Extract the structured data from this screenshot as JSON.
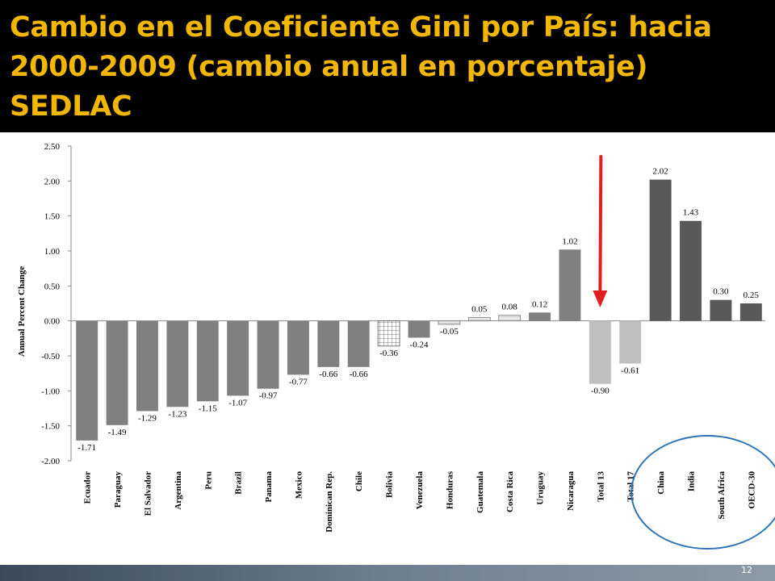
{
  "slide": {
    "title": "Cambio en el Coeficiente Gini por País:  hacia\n2000-2009 (cambio anual en porcentaje)\nSEDLAC",
    "page_number": "12"
  },
  "colors": {
    "title": "#f2b705",
    "background": "#000000",
    "latin_america_bar": "#808080",
    "totals_bar": "#bfbfbf",
    "comparators_bar": "#595959",
    "arrow": "#e02020",
    "circle": "#2e75b6"
  },
  "chart_data": {
    "type": "bar",
    "title": "",
    "xlabel": "",
    "ylabel": "Annual Percent Change",
    "ylim": [
      -2.0,
      2.5
    ],
    "yticks": [
      "2.50",
      "2.00",
      "1.50",
      "1.00",
      "0.50",
      "0.00",
      "-0.50",
      "-1.00",
      "-1.50",
      "-2.00"
    ],
    "ytick_values": [
      2.5,
      2.0,
      1.5,
      1.0,
      0.5,
      0.0,
      -0.5,
      -1.0,
      -1.5,
      -2.0
    ],
    "grid": false,
    "categories": [
      "Ecuador",
      "Paraguay",
      "El Salvador",
      "Argentina",
      "Peru",
      "Brazil",
      "Panama",
      "Mexico",
      "Dominican Rep.",
      "Chile",
      "Bolivia",
      "Venezuela",
      "Honduras",
      "Guatemala",
      "Costa Rica",
      "Uruguay",
      "Nicaragua",
      "Total 13",
      "Total 17",
      "China",
      "India",
      "South Africa",
      "OECD-30"
    ],
    "values": [
      -1.71,
      -1.49,
      -1.29,
      -1.23,
      -1.15,
      -1.07,
      -0.97,
      -0.77,
      -0.66,
      -0.66,
      -0.36,
      -0.24,
      -0.05,
      0.05,
      0.08,
      0.12,
      1.02,
      -0.9,
      -0.61,
      2.02,
      1.43,
      0.3,
      0.25
    ],
    "value_labels": [
      "-1.71",
      "-1.49",
      "-1.29",
      "-1.23",
      "-1.15",
      "-1.07",
      "-0.97",
      "-0.77",
      "-0.66",
      "-0.66",
      "-0.36",
      "-0.24",
      "-0.05",
      "0.05",
      "0.08",
      "0.12",
      "1.02",
      "-0.90",
      "-0.61",
      "2.02",
      "1.43",
      "0.30",
      "0.25"
    ],
    "bar_styles": [
      "solid",
      "solid",
      "solid",
      "solid",
      "solid",
      "solid",
      "solid",
      "solid",
      "solid",
      "solid",
      "grid",
      "solid",
      "light",
      "light",
      "light",
      "solid",
      "solid",
      "total",
      "total",
      "dark",
      "dark",
      "dark",
      "dark"
    ],
    "annotations": [
      {
        "type": "arrow",
        "color": "red",
        "points_to": "Total 13"
      },
      {
        "type": "ellipse",
        "color": "blue",
        "encloses": [
          "China",
          "India",
          "South Africa",
          "OECD-30"
        ]
      }
    ]
  }
}
